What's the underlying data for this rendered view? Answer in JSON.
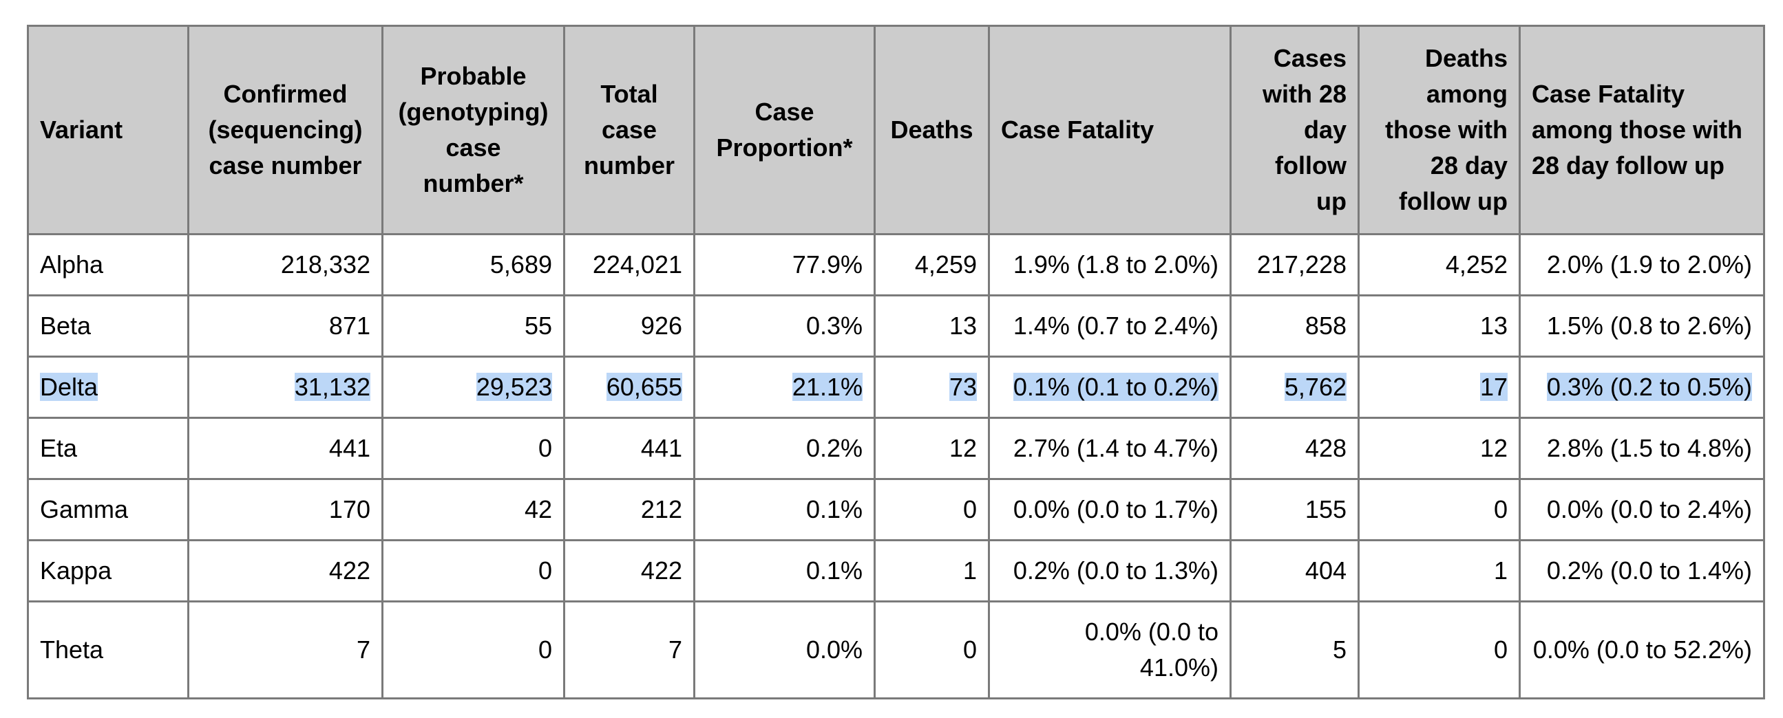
{
  "table": {
    "headers": [
      "Variant",
      "Confirmed (sequencing) case number",
      "Probable (genotyping) case number*",
      "Total case number",
      "Case Proportion*",
      "Deaths",
      "Case Fatality",
      "Cases with 28 day follow up",
      "Deaths among those with 28 day follow up",
      "Case Fatality among those with 28 day follow up"
    ],
    "rows": [
      [
        "Alpha",
        "218,332",
        "5,689",
        "224,021",
        "77.9%",
        "4,259",
        "1.9% (1.8 to 2.0%)",
        "217,228",
        "4,252",
        "2.0% (1.9 to 2.0%)"
      ],
      [
        "Beta",
        "871",
        "55",
        "926",
        "0.3%",
        "13",
        "1.4% (0.7 to 2.4%)",
        "858",
        "13",
        "1.5% (0.8 to 2.6%)"
      ],
      [
        "Delta",
        "31,132",
        "29,523",
        "60,655",
        "21.1%",
        "73",
        "0.1% (0.1 to 0.2%)",
        "5,762",
        "17",
        "0.3% (0.2 to 0.5%)"
      ],
      [
        "Eta",
        "441",
        "0",
        "441",
        "0.2%",
        "12",
        "2.7% (1.4 to 4.7%)",
        "428",
        "12",
        "2.8% (1.5 to 4.8%)"
      ],
      [
        "Gamma",
        "170",
        "42",
        "212",
        "0.1%",
        "0",
        "0.0% (0.0 to 1.7%)",
        "155",
        "0",
        "0.0% (0.0 to 2.4%)"
      ],
      [
        "Kappa",
        "422",
        "0",
        "422",
        "0.1%",
        "1",
        "0.2% (0.0 to 1.3%)",
        "404",
        "1",
        "0.2% (0.0 to 1.4%)"
      ],
      [
        "Theta",
        "7",
        "0",
        "7",
        "0.0%",
        "0",
        "0.0% (0.0 to 41.0%)",
        "5",
        "0",
        "0.0% (0.0 to 52.2%)"
      ]
    ],
    "highlight_color": "#bcd7f7",
    "header_bg": "#cccccc",
    "border_color": "#7a7a7a"
  }
}
